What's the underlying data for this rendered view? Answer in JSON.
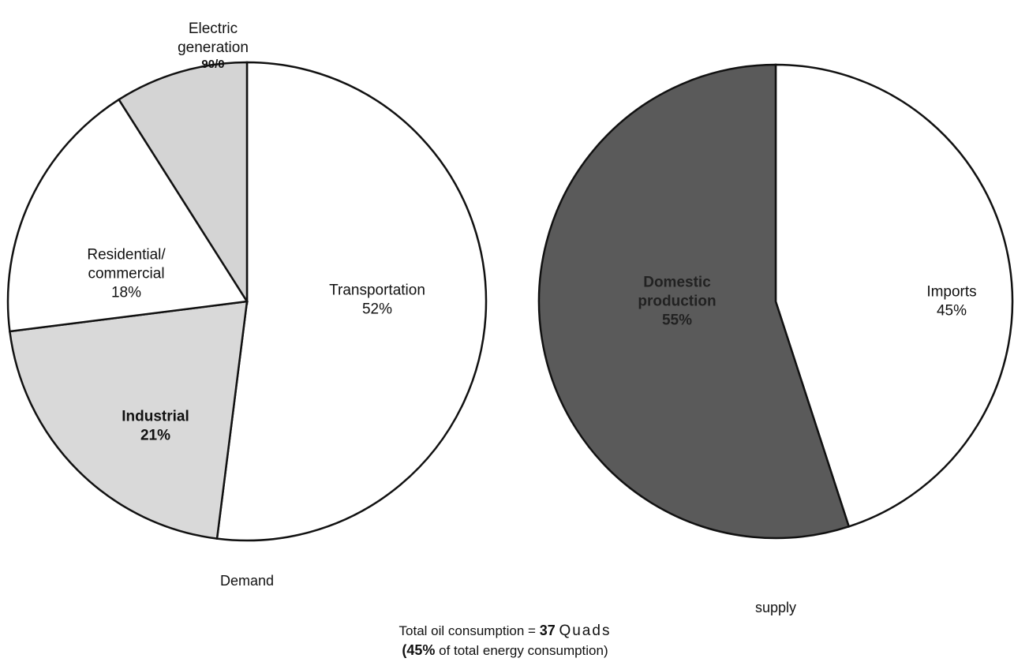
{
  "chart_data": [
    {
      "type": "pie",
      "title": "Demand",
      "categories": [
        "Transportation",
        "Industrial",
        "Residential/ commercial",
        "Electric generation"
      ],
      "values": [
        52,
        21,
        18,
        9
      ],
      "value_labels": [
        "52%",
        "21%",
        "18%",
        "90/0"
      ],
      "colors": [
        "#ffffff",
        "#d9d9d9",
        "#ffffff",
        "#d4d4d4"
      ]
    },
    {
      "type": "pie",
      "title": "supply",
      "categories": [
        "Imports",
        "Domestic production"
      ],
      "values": [
        45,
        55
      ],
      "value_labels": [
        "45%",
        "55%"
      ],
      "colors": [
        "#ffffff",
        "#5a5a5a"
      ]
    }
  ],
  "footnote": {
    "line1": [
      "Total oil consumption =",
      "37",
      "Quads"
    ],
    "line2": [
      "(45%",
      "of total energy consumption)"
    ]
  }
}
